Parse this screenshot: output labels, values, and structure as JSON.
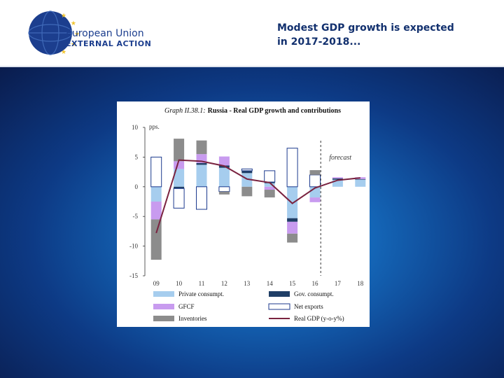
{
  "header": {
    "logo_line1": "European Union",
    "logo_line2": "EXTERNAL ACTION",
    "title_line1": "Modest GDP growth is expected",
    "title_line2": "in 2017-2018..."
  },
  "colors": {
    "header_bg": "#ffffff",
    "title": "#12306e",
    "logo_blue": "#1c3e8e",
    "private": "#a6cdee",
    "gov": "#1f3e66",
    "gfcf": "#c89bef",
    "net_exports": "#ffffff",
    "inventories": "#8c8c8c",
    "gdp_line": "#7a2340"
  },
  "chart_data": {
    "type": "bar",
    "title": "Graph II.38.1: Russia - Real GDP growth and contributions",
    "title_prefix": "Graph II.38.1:",
    "title_main": "Russia - Real GDP growth and contributions",
    "ylabel": "pps.",
    "ylim": [
      -15,
      10
    ],
    "yticks": [
      10,
      5,
      0,
      -5,
      -10,
      -15
    ],
    "categories": [
      "09",
      "10",
      "11",
      "12",
      "13",
      "14",
      "15",
      "16",
      "17",
      "18"
    ],
    "forecast_label": "forecast",
    "forecast_from": "17",
    "series": [
      {
        "name": "Private consumpt.",
        "key": "private",
        "kind": "bar",
        "values": [
          -2.5,
          3.0,
          3.7,
          3.2,
          2.3,
          0.6,
          -5.3,
          -1.8,
          1.2,
          1.2
        ]
      },
      {
        "name": "Gov. consumpt.",
        "key": "gov",
        "kind": "bar",
        "values": [
          0.0,
          -0.3,
          0.3,
          0.4,
          0.4,
          0.2,
          -0.6,
          0.0,
          0.2,
          0.1
        ]
      },
      {
        "name": "GFCF",
        "key": "gfcf",
        "kind": "bar",
        "values": [
          -3.0,
          1.3,
          1.5,
          1.5,
          0.0,
          -0.5,
          -2.0,
          -0.8,
          0.2,
          0.3
        ]
      },
      {
        "name": "Net exports",
        "key": "net_exports",
        "kind": "bar",
        "values": [
          5.0,
          -3.3,
          -3.8,
          -0.8,
          0.3,
          1.9,
          6.5,
          2.0,
          0.0,
          0.0
        ]
      },
      {
        "name": "Inventories",
        "key": "inventories",
        "kind": "bar",
        "values": [
          -6.8,
          3.8,
          2.3,
          -0.5,
          -1.6,
          -1.3,
          -1.5,
          0.8,
          0.0,
          0.0
        ]
      },
      {
        "name": "Real GDP (y-o-y%)",
        "key": "gdp",
        "kind": "line",
        "values": [
          -7.8,
          4.5,
          4.3,
          3.5,
          1.3,
          0.7,
          -2.8,
          -0.2,
          1.1,
          1.5
        ]
      }
    ]
  }
}
